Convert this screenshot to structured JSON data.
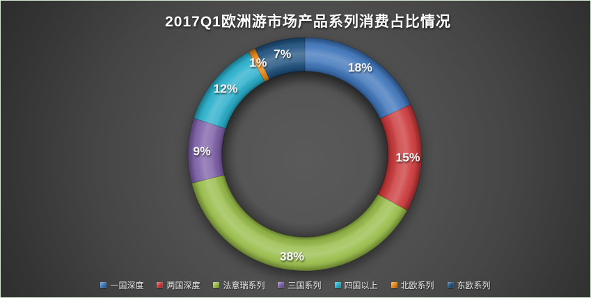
{
  "chart_data": {
    "type": "pie",
    "subtype": "donut",
    "title": "2017Q1欧洲游市场产品系列消费占比情况",
    "categories": [
      "一国深度",
      "两国深度",
      "法意瑞系列",
      "三国系列",
      "四国以上",
      "北欧系列",
      "东欧系列"
    ],
    "values": [
      18,
      15,
      38,
      9,
      12,
      1,
      7
    ],
    "unit": "%",
    "labels": [
      "18%",
      "15%",
      "38%",
      "9%",
      "12%",
      "1%",
      "7%"
    ],
    "colors": [
      "#4076bb",
      "#cb3a3c",
      "#99bd4a",
      "#7e61a8",
      "#2aafcb",
      "#e6881b",
      "#215380"
    ],
    "start_angle_deg": 0,
    "direction": "clockwise",
    "legend_position": "bottom",
    "style_3d": true
  },
  "colors": {
    "frame_border": "#d5e8d4",
    "background_center": "#5a5a5a",
    "background_edge": "#2a2a2a",
    "title_text": "#ffffff",
    "legend_text": "#e8e8e8",
    "label_text": "#f5f5f5"
  }
}
